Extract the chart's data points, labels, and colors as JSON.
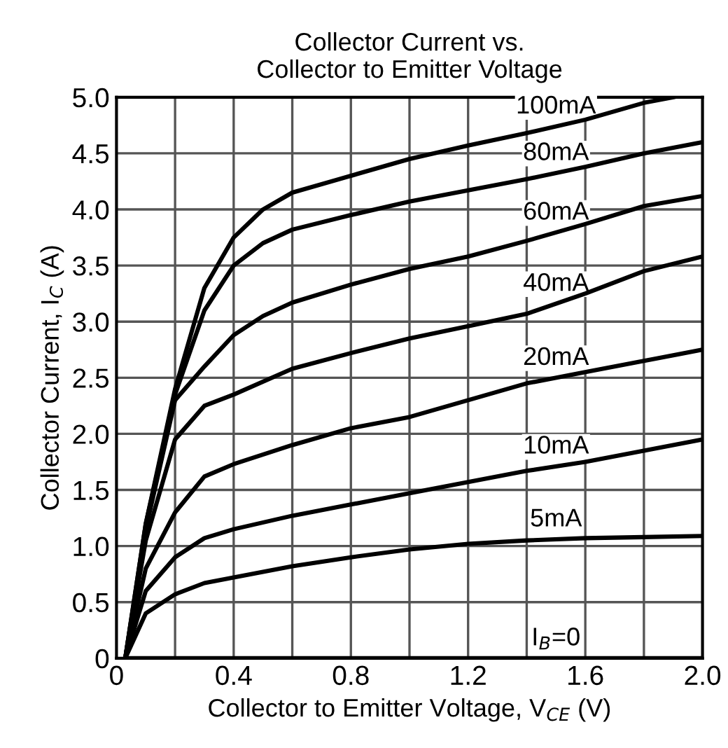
{
  "chart_data": {
    "type": "line",
    "title": "Collector Current vs.\nCollector to Emitter Voltage",
    "xlabel": "Collector to Emitter Voltage, V$_{CE}$ (V)",
    "ylabel": "Collector Current, I$_{C}$ (A)",
    "xlim": [
      0,
      2.0
    ],
    "ylim": [
      0,
      5.0
    ],
    "xticks": [
      0,
      {
        "value": 0.2,
        "label": null
      },
      0.4,
      {
        "value": 0.6,
        "label": null
      },
      0.8,
      {
        "value": 1.0,
        "label": null
      },
      1.2,
      {
        "value": 1.4,
        "label": null
      },
      1.6,
      {
        "value": 1.8,
        "label": null
      },
      {
        "value": 2.0,
        "label": "2.0"
      }
    ],
    "yticks": [
      0,
      0.5,
      {
        "value": 1.0,
        "label": "1.0"
      },
      1.5,
      {
        "value": 2.0,
        "label": "2.0"
      },
      2.5,
      {
        "value": 3.0,
        "label": "3.0"
      },
      3.5,
      {
        "value": 4.0,
        "label": "4.0"
      },
      4.5,
      {
        "value": 5.0,
        "label": "5.0"
      }
    ],
    "grid": true,
    "marker": "none",
    "line_style": "solid",
    "series": [
      {
        "name": "100mA",
        "color": "#000000",
        "x": [
          0.03,
          0.1,
          0.2,
          0.3,
          0.4,
          0.5,
          0.6,
          0.8,
          1.0,
          1.2,
          1.4,
          1.6,
          1.8,
          1.9
        ],
        "values": [
          0,
          1.2,
          2.4,
          3.3,
          3.75,
          4.0,
          4.15,
          4.3,
          4.45,
          4.57,
          4.68,
          4.8,
          4.95,
          5.0
        ]
      },
      {
        "name": "80mA",
        "color": "#000000",
        "x": [
          0.03,
          0.1,
          0.2,
          0.3,
          0.4,
          0.5,
          0.6,
          0.8,
          1.0,
          1.2,
          1.4,
          1.6,
          1.8,
          2.0
        ],
        "values": [
          0,
          1.2,
          2.35,
          3.1,
          3.5,
          3.7,
          3.82,
          3.95,
          4.07,
          4.17,
          4.27,
          4.38,
          4.5,
          4.6
        ]
      },
      {
        "name": "60mA",
        "color": "#000000",
        "x": [
          0.03,
          0.1,
          0.2,
          0.3,
          0.4,
          0.5,
          0.6,
          0.8,
          1.0,
          1.2,
          1.4,
          1.6,
          1.8,
          2.0
        ],
        "values": [
          0,
          1.15,
          2.3,
          2.6,
          2.88,
          3.05,
          3.17,
          3.33,
          3.47,
          3.58,
          3.72,
          3.87,
          4.03,
          4.12
        ]
      },
      {
        "name": "40mA",
        "color": "#000000",
        "x": [
          0.03,
          0.1,
          0.2,
          0.3,
          0.4,
          0.6,
          0.8,
          1.0,
          1.2,
          1.4,
          1.6,
          1.8,
          2.0
        ],
        "values": [
          0,
          1.05,
          1.95,
          2.25,
          2.35,
          2.58,
          2.72,
          2.85,
          2.96,
          3.07,
          3.25,
          3.45,
          3.58
        ]
      },
      {
        "name": "20mA",
        "color": "#000000",
        "x": [
          0.03,
          0.1,
          0.2,
          0.3,
          0.4,
          0.6,
          0.8,
          1.0,
          1.2,
          1.4,
          1.6,
          1.8,
          2.0
        ],
        "values": [
          0,
          0.8,
          1.3,
          1.62,
          1.73,
          1.9,
          2.05,
          2.15,
          2.3,
          2.45,
          2.55,
          2.65,
          2.75
        ]
      },
      {
        "name": "10mA",
        "color": "#000000",
        "x": [
          0.03,
          0.1,
          0.2,
          0.3,
          0.4,
          0.6,
          0.8,
          1.0,
          1.2,
          1.4,
          1.6,
          1.8,
          2.0
        ],
        "values": [
          0,
          0.6,
          0.9,
          1.07,
          1.15,
          1.27,
          1.37,
          1.47,
          1.57,
          1.67,
          1.75,
          1.85,
          1.95
        ]
      },
      {
        "name": "5mA",
        "color": "#000000",
        "x": [
          0.03,
          0.1,
          0.2,
          0.3,
          0.4,
          0.6,
          0.8,
          1.0,
          1.2,
          1.4,
          1.6,
          1.8,
          2.0
        ],
        "values": [
          0,
          0.4,
          0.57,
          0.67,
          0.72,
          0.82,
          0.9,
          0.97,
          1.02,
          1.05,
          1.07,
          1.08,
          1.09
        ]
      },
      {
        "name": "I$_{B}$=0",
        "color": "#000000",
        "x": [
          0.03,
          2.0
        ],
        "values": [
          0,
          0
        ]
      }
    ]
  }
}
